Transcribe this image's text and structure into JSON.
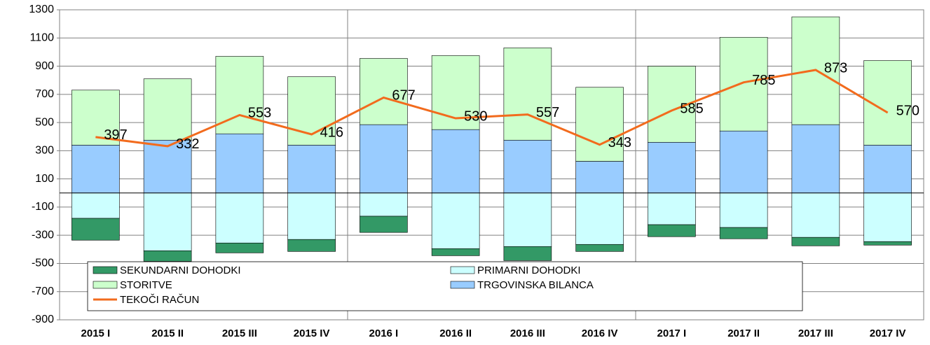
{
  "chart_data": {
    "type": "bar",
    "stacked": true,
    "categories": [
      "2015 I",
      "2015 II",
      "2015 III",
      "2015 IV",
      "2016 I",
      "2016 II",
      "2016 III",
      "2016 IV",
      "2017 I",
      "2017 II",
      "2017 III",
      "2017 IV"
    ],
    "series": [
      {
        "name": "SEKUNDARNI DOHODKI",
        "color": "#339966",
        "values": [
          -155,
          -75,
          -70,
          -85,
          -115,
          -50,
          -100,
          -50,
          -85,
          -80,
          -60,
          -25
        ]
      },
      {
        "name": "PRIMARNI DOHODKI",
        "color": "#ccffff",
        "values": [
          -180,
          -410,
          -355,
          -330,
          -165,
          -395,
          -380,
          -365,
          -225,
          -245,
          -315,
          -345
        ]
      },
      {
        "name": "STORITVE",
        "color": "#ccffcc",
        "values": [
          390,
          435,
          550,
          485,
          470,
          525,
          655,
          525,
          540,
          665,
          765,
          600
        ]
      },
      {
        "name": "TRGOVINSKA BILANCA",
        "color": "#99ccff",
        "values": [
          340,
          375,
          420,
          340,
          485,
          450,
          375,
          225,
          360,
          440,
          485,
          340
        ]
      },
      {
        "name": "TEKOČI RAČUN",
        "type": "line",
        "color": "#f26b1d",
        "values": [
          397,
          332,
          553,
          416,
          677,
          530,
          557,
          343,
          585,
          785,
          873,
          570
        ]
      }
    ],
    "ylim": [
      -900,
      1300
    ],
    "yticks": [
      -900,
      -700,
      -500,
      -300,
      -100,
      100,
      300,
      500,
      700,
      900,
      1100,
      1300
    ],
    "grid": true,
    "legend": "bottom"
  }
}
